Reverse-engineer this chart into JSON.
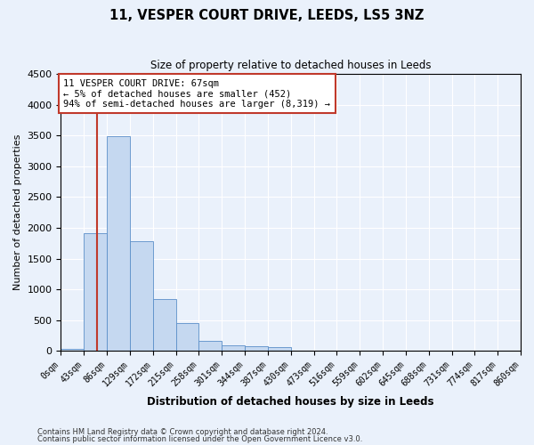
{
  "title": "11, VESPER COURT DRIVE, LEEDS, LS5 3NZ",
  "subtitle": "Size of property relative to detached houses in Leeds",
  "xlabel": "Distribution of detached houses by size in Leeds",
  "ylabel": "Number of detached properties",
  "footnote1": "Contains HM Land Registry data © Crown copyright and database right 2024.",
  "footnote2": "Contains public sector information licensed under the Open Government Licence v3.0.",
  "annotation_line1": "11 VESPER COURT DRIVE: 67sqm",
  "annotation_line2": "← 5% of detached houses are smaller (452)",
  "annotation_line3": "94% of semi-detached houses are larger (8,319) →",
  "bar_color": "#c5d8f0",
  "bar_edge_color": "#5b8fc9",
  "vline_color": "#c0392b",
  "vline_x": 67,
  "bin_edges": [
    0,
    43,
    86,
    129,
    172,
    215,
    258,
    301,
    344,
    387,
    430,
    473,
    516,
    559,
    602,
    645,
    688,
    731,
    774,
    817,
    860
  ],
  "bar_heights": [
    30,
    1910,
    3490,
    1790,
    840,
    450,
    170,
    100,
    80,
    70,
    0,
    0,
    0,
    0,
    0,
    0,
    0,
    0,
    0,
    0
  ],
  "ylim": [
    0,
    4500
  ],
  "yticks": [
    0,
    500,
    1000,
    1500,
    2000,
    2500,
    3000,
    3500,
    4000,
    4500
  ],
  "bg_color": "#eaf1fb",
  "plot_bg_color": "#eaf1fb",
  "grid_color": "#ffffff",
  "annotation_box_color": "#ffffff",
  "annotation_box_edge": "#c0392b"
}
